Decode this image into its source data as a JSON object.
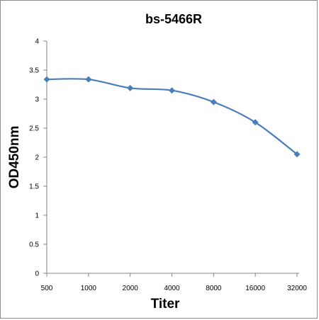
{
  "chart_data": {
    "type": "line",
    "title": "bs-5466R",
    "xlabel": "Titer",
    "ylabel": "OD450nm",
    "categories": [
      "500",
      "1000",
      "2000",
      "4000",
      "8000",
      "16000",
      "32000"
    ],
    "series": [
      {
        "values": [
          3.34,
          3.34,
          3.19,
          3.15,
          2.95,
          2.6,
          2.05
        ],
        "color": "#4a7ebb"
      }
    ],
    "ylim": [
      0,
      4
    ],
    "yticks": [
      "0",
      "0.5",
      "1",
      "1.5",
      "2",
      "2.5",
      "3",
      "3.5",
      "4"
    ],
    "grid": false,
    "legend": "none",
    "marker": "diamond",
    "smooth": true
  }
}
